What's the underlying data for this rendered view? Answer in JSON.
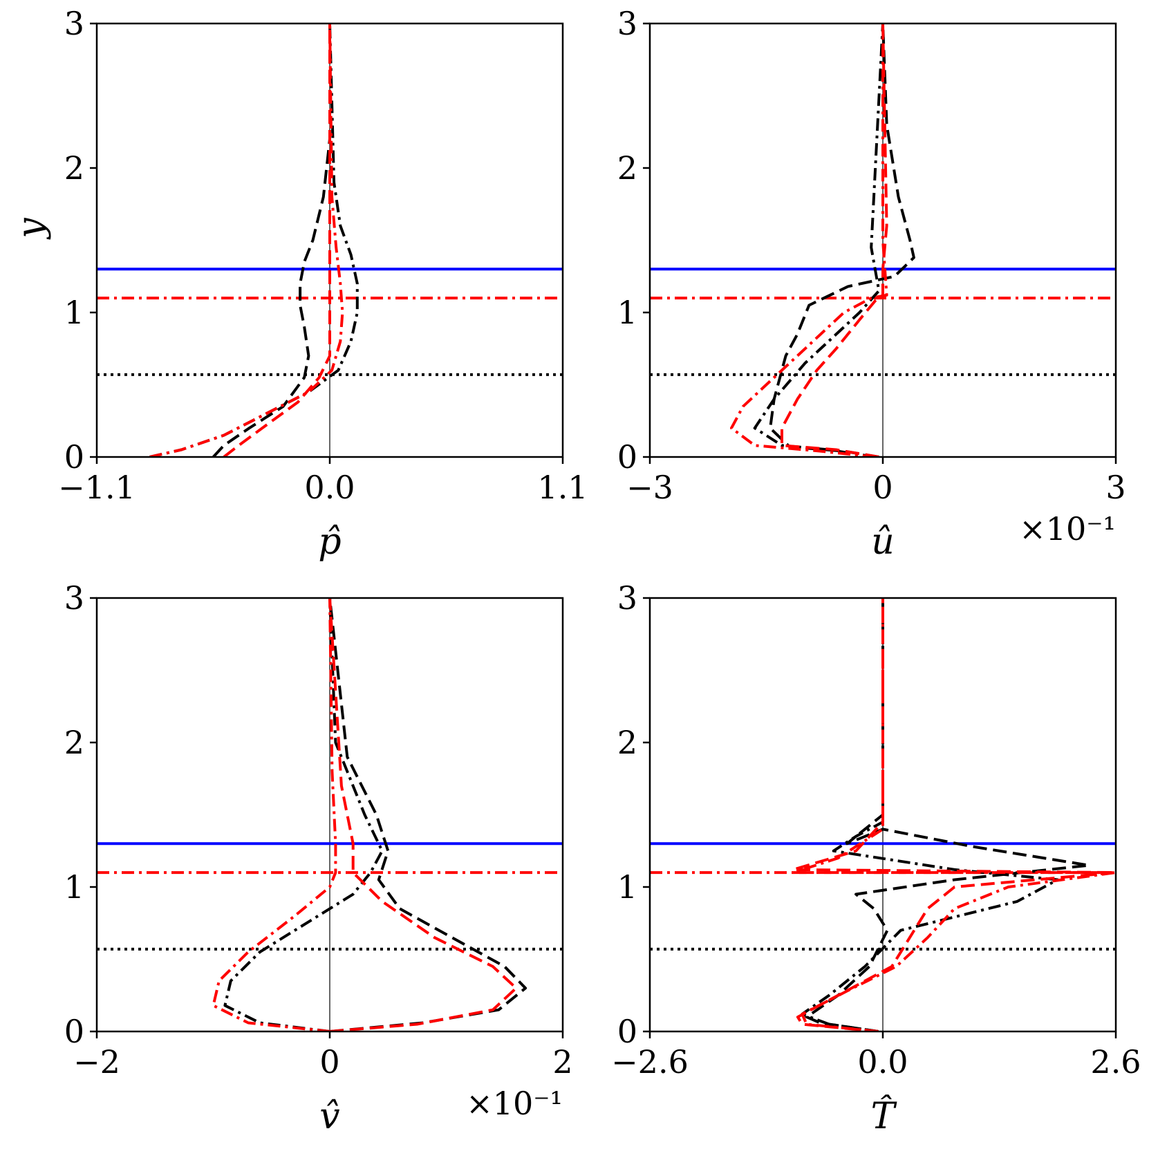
{
  "figure": {
    "y_label": "y"
  },
  "chart_data": [
    {
      "type": "line",
      "xlabel": "p̂",
      "exponent_label": "",
      "xlim": [
        -1.1,
        1.1
      ],
      "ylim": [
        0,
        3
      ],
      "xticks": [
        -1.1,
        0.0,
        1.1
      ],
      "xtick_labels": [
        "−1.1",
        "0.0",
        "1.1"
      ],
      "yticks": [
        0,
        1,
        2,
        3
      ],
      "ytick_labels": [
        "0",
        "1",
        "2",
        "3"
      ],
      "hlines": [
        {
          "y": 1.3,
          "color": "#0000ff",
          "style": "solid"
        },
        {
          "y": 1.1,
          "color": "#ff0000",
          "style": "dashdot"
        },
        {
          "y": 0.57,
          "color": "#000000",
          "style": "dotted"
        }
      ],
      "series": [
        {
          "color": "#000000",
          "style": "dashed",
          "x": [
            -0.55,
            -0.5,
            -0.38,
            -0.22,
            -0.12,
            -0.1,
            -0.12,
            -0.14,
            -0.14,
            -0.12,
            -0.08,
            -0.03,
            0.0,
            0.0
          ],
          "y": [
            0,
            0.08,
            0.2,
            0.35,
            0.55,
            0.7,
            0.9,
            1.05,
            1.2,
            1.35,
            1.5,
            1.8,
            2.2,
            3.0
          ]
        },
        {
          "color": "#000000",
          "style": "dashdot",
          "x": [
            -0.85,
            -0.7,
            -0.5,
            -0.3,
            -0.1,
            0.04,
            0.1,
            0.13,
            0.13,
            0.1,
            0.05,
            0.02,
            0.0
          ],
          "y": [
            0,
            0.05,
            0.15,
            0.3,
            0.45,
            0.6,
            0.8,
            1.0,
            1.2,
            1.4,
            1.6,
            1.9,
            3.0
          ]
        },
        {
          "color": "#ff0000",
          "style": "dashed",
          "x": [
            -0.5,
            -0.43,
            -0.3,
            -0.15,
            -0.05,
            0.0,
            0.0,
            0.0,
            0.0
          ],
          "y": [
            0,
            0.08,
            0.22,
            0.38,
            0.55,
            0.7,
            1.0,
            1.5,
            3.0
          ]
        },
        {
          "color": "#ff0000",
          "style": "dashdot",
          "x": [
            -0.85,
            -0.7,
            -0.5,
            -0.3,
            -0.1,
            0.01,
            0.05,
            0.06,
            0.05,
            0.03,
            0.01,
            0.0
          ],
          "y": [
            0,
            0.05,
            0.15,
            0.3,
            0.45,
            0.6,
            0.8,
            1.0,
            1.2,
            1.45,
            1.8,
            3.0
          ]
        }
      ]
    },
    {
      "type": "line",
      "xlabel": "û",
      "exponent_label": "×10⁻¹",
      "xlim": [
        -3,
        3
      ],
      "ylim": [
        0,
        3
      ],
      "xticks": [
        -3,
        0,
        3
      ],
      "xtick_labels": [
        "−3",
        "0",
        "3"
      ],
      "yticks": [
        0,
        1,
        2,
        3
      ],
      "ytick_labels": [
        "0",
        "1",
        "2",
        "3"
      ],
      "hlines": [
        {
          "y": 1.3,
          "color": "#0000ff",
          "style": "solid"
        },
        {
          "y": 1.1,
          "color": "#ff0000",
          "style": "dashdot"
        },
        {
          "y": 0.57,
          "color": "#000000",
          "style": "dotted"
        }
      ],
      "series": [
        {
          "color": "#000000",
          "style": "dashed",
          "x": [
            -0.05,
            -0.5,
            -1.2,
            -1.45,
            -1.4,
            -1.25,
            -1.1,
            -0.95,
            -0.45,
            0.15,
            0.4,
            0.35,
            0.2,
            0.05,
            0.0
          ],
          "y": [
            0,
            0.04,
            0.07,
            0.2,
            0.4,
            0.7,
            0.85,
            1.05,
            1.18,
            1.25,
            1.38,
            1.5,
            1.8,
            2.3,
            3.0
          ]
        },
        {
          "color": "#000000",
          "style": "dashdot",
          "x": [
            -0.1,
            -0.7,
            -1.3,
            -1.65,
            -1.4,
            -1.0,
            -0.6,
            -0.3,
            -0.05,
            -0.1,
            -0.15,
            0.0
          ],
          "y": [
            0,
            0.05,
            0.08,
            0.2,
            0.4,
            0.65,
            0.85,
            1.0,
            1.15,
            1.3,
            1.45,
            3.0
          ]
        },
        {
          "color": "#ff0000",
          "style": "dashed",
          "x": [
            -0.05,
            -0.6,
            -1.3,
            -1.3,
            -1.1,
            -0.85,
            -0.6,
            -0.3,
            -0.1,
            0.0,
            0.0,
            0.05,
            0.0
          ],
          "y": [
            0,
            0.05,
            0.08,
            0.2,
            0.4,
            0.6,
            0.75,
            0.95,
            1.08,
            1.12,
            1.3,
            1.6,
            3.0
          ]
        },
        {
          "color": "#ff0000",
          "style": "dashdot",
          "x": [
            -0.1,
            -0.8,
            -1.65,
            -1.95,
            -1.8,
            -1.4,
            -0.9,
            -0.5,
            -0.15,
            0.05,
            0.0,
            0.0
          ],
          "y": [
            0,
            0.04,
            0.08,
            0.2,
            0.35,
            0.55,
            0.8,
            1.0,
            1.1,
            1.12,
            1.5,
            3.0
          ]
        }
      ]
    },
    {
      "type": "line",
      "xlabel": "v̂",
      "exponent_label": "×10⁻¹",
      "xlim": [
        -2,
        2
      ],
      "ylim": [
        0,
        3
      ],
      "xticks": [
        -2,
        0,
        2
      ],
      "xtick_labels": [
        "−2",
        "0",
        "2"
      ],
      "yticks": [
        0,
        1,
        2,
        3
      ],
      "ytick_labels": [
        "0",
        "1",
        "2",
        "3"
      ],
      "hlines": [
        {
          "y": 1.3,
          "color": "#0000ff",
          "style": "solid"
        },
        {
          "y": 1.1,
          "color": "#ff0000",
          "style": "dashdot"
        },
        {
          "y": 0.57,
          "color": "#000000",
          "style": "dotted"
        }
      ],
      "series": [
        {
          "color": "#000000",
          "style": "dashed",
          "x": [
            0.0,
            0.8,
            1.45,
            1.68,
            1.5,
            1.05,
            0.6,
            0.42,
            0.5,
            0.4,
            0.15,
            0.0
          ],
          "y": [
            0,
            0.06,
            0.15,
            0.3,
            0.45,
            0.65,
            0.85,
            1.05,
            1.25,
            1.5,
            1.9,
            3.0
          ]
        },
        {
          "color": "#000000",
          "style": "dashdot",
          "x": [
            0.0,
            -0.6,
            -0.9,
            -0.85,
            -0.6,
            -0.2,
            0.2,
            0.35,
            0.45,
            0.3,
            0.05,
            0.0
          ],
          "y": [
            0,
            0.06,
            0.18,
            0.35,
            0.55,
            0.75,
            0.95,
            1.1,
            1.25,
            1.5,
            2.0,
            3.0
          ]
        },
        {
          "color": "#ff0000",
          "style": "dashed",
          "x": [
            0.0,
            0.75,
            1.4,
            1.6,
            1.4,
            0.9,
            0.45,
            0.2,
            0.2,
            0.1,
            0.0
          ],
          "y": [
            0,
            0.05,
            0.15,
            0.3,
            0.45,
            0.65,
            0.9,
            1.1,
            1.3,
            1.7,
            3.0
          ]
        },
        {
          "color": "#ff0000",
          "style": "dashdot",
          "x": [
            0.0,
            -0.7,
            -1.0,
            -0.95,
            -0.7,
            -0.3,
            0.0,
            0.05,
            0.05,
            0.02,
            0.0
          ],
          "y": [
            0,
            0.06,
            0.18,
            0.35,
            0.55,
            0.8,
            1.0,
            1.1,
            1.3,
            1.8,
            3.0
          ]
        }
      ]
    },
    {
      "type": "line",
      "xlabel": "T̂",
      "exponent_label": "",
      "xlim": [
        -2.6,
        2.6
      ],
      "ylim": [
        0,
        3
      ],
      "xticks": [
        -2.6,
        0.0,
        2.6
      ],
      "xtick_labels": [
        "−2.6",
        "0.0",
        "2.6"
      ],
      "yticks": [
        0,
        1,
        2,
        3
      ],
      "ytick_labels": [
        "0",
        "1",
        "2",
        "3"
      ],
      "hlines": [
        {
          "y": 1.3,
          "color": "#0000ff",
          "style": "solid"
        },
        {
          "y": 1.1,
          "color": "#ff0000",
          "style": "dashdot"
        },
        {
          "y": 0.57,
          "color": "#000000",
          "style": "dotted"
        }
      ],
      "series": [
        {
          "color": "#000000",
          "style": "dashed",
          "x": [
            -0.05,
            -0.7,
            -0.85,
            -0.5,
            -0.15,
            0.05,
            -0.1,
            -0.3,
            0.8,
            2.3,
            1.0,
            0.0,
            -0.4,
            0.0,
            0.0
          ],
          "y": [
            0,
            0.06,
            0.1,
            0.25,
            0.45,
            0.7,
            0.85,
            0.95,
            1.05,
            1.15,
            1.28,
            1.4,
            1.3,
            1.5,
            3.0
          ]
        },
        {
          "color": "#000000",
          "style": "dashdot",
          "x": [
            -0.05,
            -0.6,
            -0.9,
            -0.6,
            -0.2,
            0.2,
            1.5,
            1.95,
            0.8,
            -0.55,
            -0.3,
            0.0,
            0.0
          ],
          "y": [
            0,
            0.05,
            0.12,
            0.25,
            0.45,
            0.7,
            0.9,
            1.05,
            1.12,
            1.25,
            1.35,
            1.45,
            3.0
          ]
        },
        {
          "color": "#ff0000",
          "style": "dashed",
          "x": [
            -0.05,
            -0.9,
            -0.95,
            -0.5,
            0.1,
            0.3,
            0.5,
            0.8,
            2.6,
            -1.0,
            -0.3,
            0.0,
            0.0
          ],
          "y": [
            0,
            0.05,
            0.1,
            0.25,
            0.45,
            0.65,
            0.85,
            1.0,
            1.1,
            1.12,
            1.25,
            1.45,
            3.0
          ]
        },
        {
          "color": "#ff0000",
          "style": "dashdot",
          "x": [
            -0.05,
            -0.85,
            -0.9,
            -0.4,
            0.15,
            0.5,
            0.8,
            1.4,
            2.6,
            -1.0,
            -0.5,
            0.0,
            0.0
          ],
          "y": [
            0,
            0.05,
            0.12,
            0.28,
            0.45,
            0.65,
            0.85,
            1.0,
            1.1,
            1.1,
            1.2,
            1.4,
            3.0
          ]
        }
      ]
    }
  ]
}
